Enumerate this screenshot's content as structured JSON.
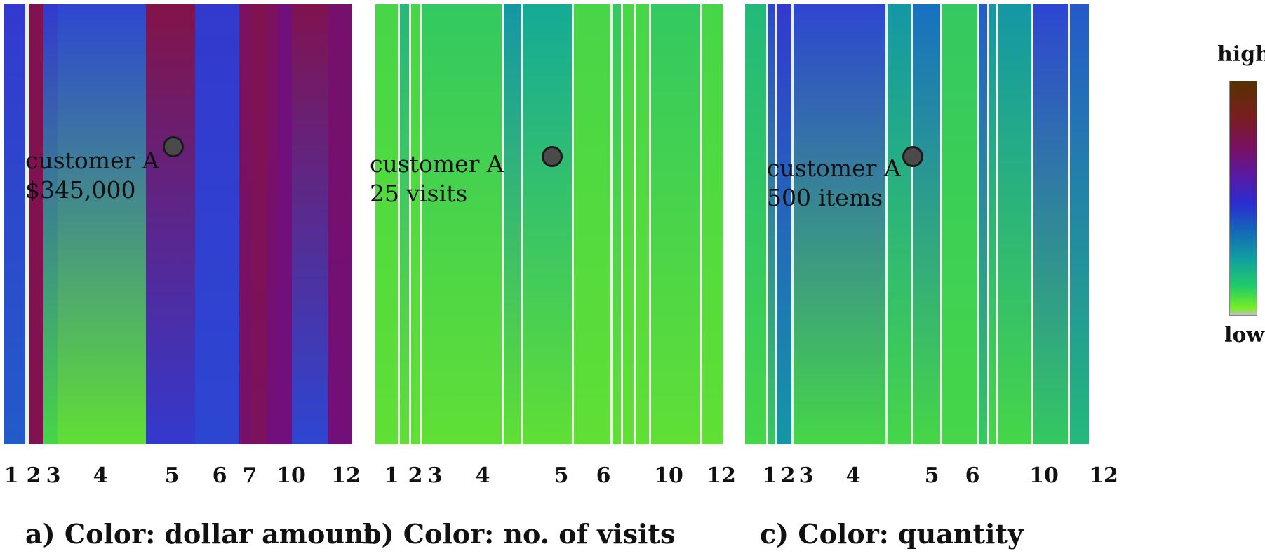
{
  "chart_data": [
    {
      "type": "heatmap",
      "caption": "a) Color: dollar amount",
      "x_ticks": [
        "1",
        "2",
        "3",
        "4",
        "5",
        "6",
        "7",
        "10",
        "12"
      ],
      "annotation": {
        "line1": "customer A",
        "line2": "$345,000"
      },
      "columns": [
        {
          "level_top": 0.55,
          "level_bottom": 0.45
        },
        {
          "level_top": 0.92,
          "level_bottom": 0.92
        },
        {
          "level_top": 0.55,
          "level_bottom": 0.1
        },
        {
          "level_top": 0.5,
          "level_bottom": 0.05
        },
        {
          "level_top": 0.93,
          "level_bottom": 0.55
        },
        {
          "level_top": 0.55,
          "level_bottom": 0.5
        },
        {
          "level_top": 0.9,
          "level_bottom": 0.88
        },
        {
          "level_top": 0.92,
          "level_bottom": 0.9
        },
        {
          "level_top": 0.9,
          "level_bottom": 0.85
        },
        {
          "level_top": 0.85,
          "level_bottom": 0.85
        },
        {
          "level_top": 0.92,
          "level_bottom": 0.5
        },
        {
          "level_top": 0.88,
          "level_bottom": 0.86
        }
      ]
    },
    {
      "type": "heatmap",
      "caption": "b) Color: no. of visits",
      "x_ticks": [
        "1",
        "2",
        "3",
        "4",
        "5",
        "6",
        "10",
        "12"
      ],
      "annotation": {
        "line1": "customer A",
        "line2": "25 visits"
      },
      "columns": [
        {
          "level_top": 0.1,
          "level_bottom": 0.05
        },
        {
          "level_top": 0.2,
          "level_bottom": 0.05
        },
        {
          "level_top": 0.1,
          "level_bottom": 0.05
        },
        {
          "level_top": 0.15,
          "level_bottom": 0.05
        },
        {
          "level_top": 0.3,
          "level_bottom": 0.05
        },
        {
          "level_top": 0.25,
          "level_bottom": 0.05
        },
        {
          "level_top": 0.1,
          "level_bottom": 0.05
        },
        {
          "level_top": 0.15,
          "level_bottom": 0.05
        },
        {
          "level_top": 0.1,
          "level_bottom": 0.05
        },
        {
          "level_top": 0.1,
          "level_bottom": 0.05
        },
        {
          "level_top": 0.15,
          "level_bottom": 0.05
        },
        {
          "level_top": 0.1,
          "level_bottom": 0.05
        }
      ]
    },
    {
      "type": "heatmap",
      "caption": "c) Color:  quantity",
      "x_ticks": [
        "1",
        "2",
        "3",
        "4",
        "5",
        "6",
        "10",
        "12"
      ],
      "annotation": {
        "line1": "customer A",
        "line2": "500 items"
      },
      "columns": [
        {
          "level_top": 0.2,
          "level_bottom": 0.1
        },
        {
          "level_top": 0.5,
          "level_bottom": 0.15
        },
        {
          "level_top": 0.55,
          "level_bottom": 0.3
        },
        {
          "level_top": 0.5,
          "level_bottom": 0.1
        },
        {
          "level_top": 0.3,
          "level_bottom": 0.1
        },
        {
          "level_top": 0.4,
          "level_bottom": 0.1
        },
        {
          "level_top": 0.15,
          "level_bottom": 0.1
        },
        {
          "level_top": 0.45,
          "level_bottom": 0.15
        },
        {
          "level_top": 0.3,
          "level_bottom": 0.1
        },
        {
          "level_top": 0.3,
          "level_bottom": 0.1
        },
        {
          "level_top": 0.5,
          "level_bottom": 0.15
        },
        {
          "level_top": 0.45,
          "level_bottom": 0.2
        }
      ]
    }
  ],
  "legend": {
    "high": "high",
    "low": "low"
  }
}
